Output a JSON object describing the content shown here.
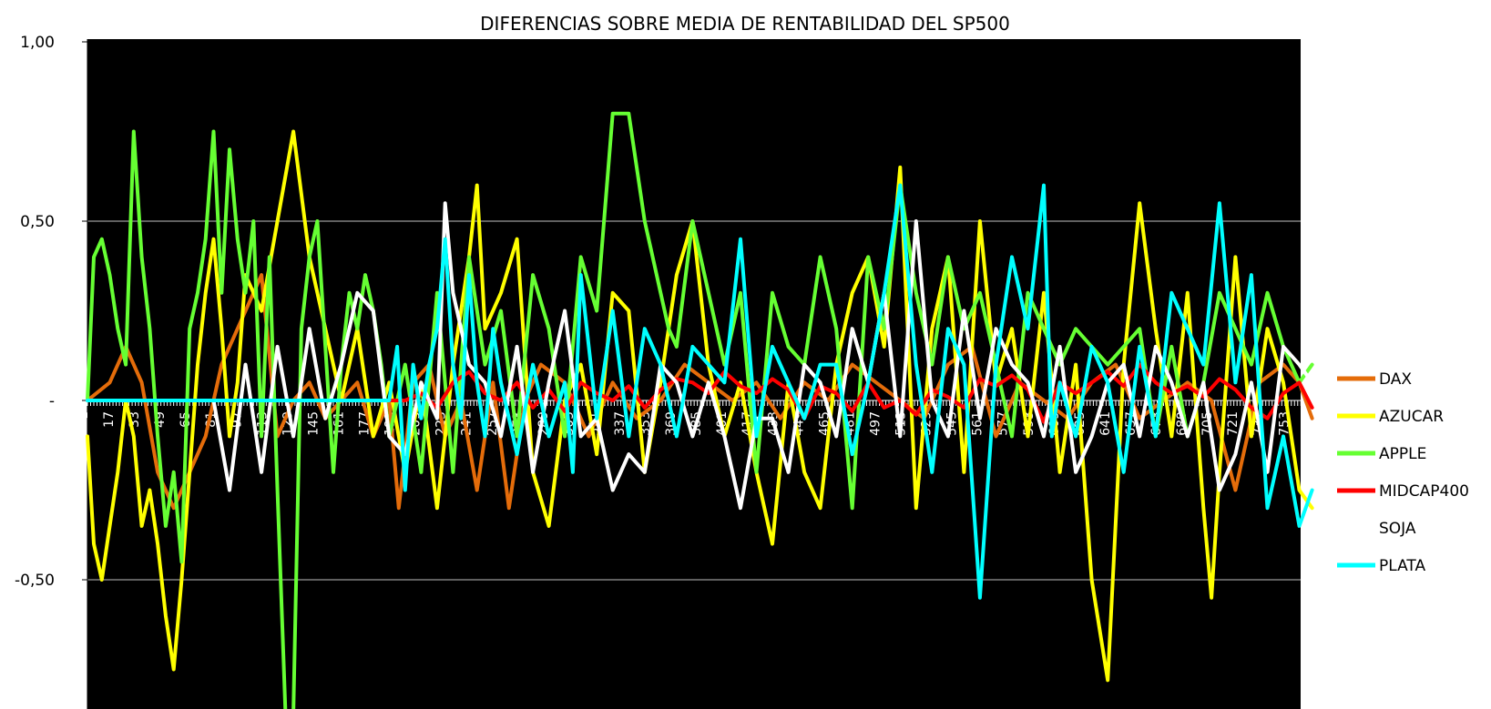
{
  "chart_data": {
    "type": "line",
    "title": "DIFERENCIAS SOBRE MEDIA DE RENTABILIDAD DEL SP500",
    "xlabel": "",
    "ylabel": "",
    "ylim": [
      -0.87,
      1.0
    ],
    "xlim": [
      1,
      768
    ],
    "yticks": [
      {
        "value": 1.0,
        "label": "1,00"
      },
      {
        "value": 0.5,
        "label": "0,50"
      },
      {
        "value": 0.0,
        "label": "-"
      },
      {
        "value": -0.5,
        "label": "-0,50"
      }
    ],
    "xticks": [
      1,
      17,
      33,
      49,
      65,
      81,
      97,
      113,
      129,
      145,
      161,
      177,
      193,
      209,
      225,
      241,
      257,
      273,
      289,
      305,
      321,
      337,
      353,
      369,
      385,
      401,
      417,
      433,
      449,
      465,
      481,
      497,
      513,
      529,
      545,
      561,
      577,
      593,
      609,
      625,
      641,
      657,
      673,
      689,
      705,
      721,
      737,
      753
    ],
    "plot_background": "#000000",
    "grid": true,
    "legend_position": "right",
    "series": [
      {
        "name": "DAX",
        "color": "#e46c0a",
        "x": [
          1,
          15,
          25,
          35,
          45,
          55,
          65,
          75,
          85,
          95,
          110,
          120,
          130,
          140,
          150,
          160,
          170,
          180,
          190,
          196,
          205,
          215,
          225,
          235,
          245,
          255,
          265,
          275,
          285,
          300,
          315,
          330,
          345,
          360,
          375,
          390,
          405,
          420,
          435,
          450,
          465,
          480,
          495,
          510,
          525,
          540,
          555,
          570,
          585,
          600,
          615,
          630,
          645,
          660,
          675,
          690,
          705,
          720,
          735,
          750,
          760,
          768
        ],
        "y": [
          0,
          0.05,
          0.15,
          0.05,
          -0.2,
          -0.3,
          -0.2,
          -0.1,
          0.1,
          0.2,
          0.35,
          -0.1,
          0,
          0.05,
          -0.05,
          0,
          0.05,
          -0.1,
          0,
          -0.3,
          0.05,
          0.1,
          -0.1,
          0,
          -0.25,
          0.05,
          -0.3,
          0,
          0.1,
          0.05,
          -0.1,
          0.05,
          -0.05,
          0,
          0.1,
          0.05,
          0,
          0.05,
          -0.05,
          0.05,
          0,
          0.1,
          0.05,
          0,
          -0.05,
          0.1,
          0.15,
          -0.1,
          0.05,
          0,
          -0.05,
          0.05,
          0.1,
          -0.05,
          0,
          0.05,
          0,
          -0.25,
          0.05,
          0.1,
          0.05,
          -0.05
        ]
      },
      {
        "name": "AZUCAR",
        "color": "#ffff00",
        "x": [
          1,
          5,
          10,
          15,
          20,
          25,
          30,
          35,
          40,
          45,
          50,
          55,
          60,
          65,
          70,
          75,
          80,
          85,
          90,
          95,
          100,
          110,
          120,
          130,
          140,
          150,
          160,
          170,
          180,
          190,
          200,
          210,
          220,
          230,
          240,
          245,
          250,
          260,
          270,
          280,
          290,
          300,
          310,
          320,
          330,
          340,
          350,
          360,
          370,
          380,
          390,
          400,
          410,
          420,
          430,
          440,
          450,
          460,
          470,
          480,
          490,
          500,
          510,
          520,
          530,
          540,
          550,
          560,
          570,
          580,
          590,
          600,
          610,
          620,
          630,
          640,
          650,
          660,
          670,
          680,
          690,
          700,
          705,
          710,
          715,
          720,
          730,
          740,
          750,
          760,
          768
        ],
        "y": [
          -0.1,
          -0.4,
          -0.5,
          -0.35,
          -0.2,
          0,
          -0.1,
          -0.35,
          -0.25,
          -0.4,
          -0.6,
          -0.75,
          -0.5,
          -0.2,
          0.1,
          0.3,
          0.45,
          0.2,
          -0.1,
          0.05,
          0.35,
          0.25,
          0.5,
          0.75,
          0.4,
          0.2,
          0,
          0.2,
          -0.1,
          0.05,
          -0.2,
          0.05,
          -0.3,
          0.1,
          0.4,
          0.6,
          0.2,
          0.3,
          0.45,
          -0.2,
          -0.35,
          0,
          0.1,
          -0.15,
          0.3,
          0.25,
          -0.2,
          0.05,
          0.35,
          0.5,
          0.1,
          -0.1,
          0.05,
          -0.2,
          -0.4,
          0.05,
          -0.2,
          -0.3,
          0.1,
          0.3,
          0.4,
          0.15,
          0.65,
          -0.3,
          0.2,
          0.4,
          -0.2,
          0.5,
          0.05,
          0.2,
          -0.1,
          0.3,
          -0.2,
          0.1,
          -0.5,
          -0.78,
          0.1,
          0.55,
          0.2,
          -0.1,
          0.3,
          -0.3,
          -0.55,
          -0.2,
          0.1,
          0.4,
          -0.1,
          0.2,
          0.05,
          -0.25,
          -0.3
        ]
      },
      {
        "name": "APPLE",
        "color": "#66ff33",
        "x": [
          1,
          5,
          10,
          15,
          20,
          25,
          30,
          35,
          40,
          45,
          50,
          55,
          60,
          65,
          70,
          75,
          80,
          85,
          90,
          95,
          100,
          105,
          110,
          115,
          120,
          125,
          130,
          135,
          140,
          145,
          150,
          155,
          160,
          165,
          170,
          175,
          180,
          185,
          190,
          200,
          210,
          220,
          230,
          240,
          250,
          260,
          270,
          280,
          290,
          300,
          310,
          320,
          330,
          340,
          350,
          355,
          360,
          365,
          370,
          380,
          390,
          400,
          410,
          420,
          430,
          440,
          450,
          460,
          470,
          480,
          490,
          500,
          510,
          520,
          530,
          540,
          550,
          560,
          570,
          580,
          590,
          600,
          610,
          620,
          630,
          640,
          650,
          660,
          670,
          680,
          690,
          700,
          710,
          720,
          730,
          740,
          750,
          760,
          768
        ],
        "y": [
          0,
          0.4,
          0.45,
          0.35,
          0.2,
          0.1,
          0.75,
          0.4,
          0.2,
          -0.1,
          -0.35,
          -0.2,
          -0.45,
          0.2,
          0.3,
          0.45,
          0.75,
          0.3,
          0.7,
          0.45,
          0.3,
          0.5,
          -0.1,
          0.4,
          -0.25,
          -0.87,
          -0.87,
          0.2,
          0.4,
          0.5,
          0.15,
          -0.2,
          0.1,
          0.3,
          0.2,
          0.35,
          0.25,
          0.1,
          -0.1,
          0.1,
          -0.2,
          0.3,
          -0.2,
          0.4,
          0.1,
          0.25,
          -0.1,
          0.35,
          0.2,
          -0.1,
          0.4,
          0.25,
          0.8,
          0.8,
          0.5,
          0.4,
          0.3,
          0.2,
          0.15,
          0.5,
          0.3,
          0.1,
          0.3,
          -0.2,
          0.3,
          0.15,
          0.1,
          0.4,
          0.2,
          -0.3,
          0.4,
          0.2,
          0.6,
          0.3,
          0.1,
          0.4,
          0.2,
          0.3,
          0.1,
          -0.1,
          0.3,
          0.2,
          0.1,
          0.2,
          0.15,
          0.1,
          0.15,
          0.2,
          -0.1,
          0.15,
          -0.1,
          0.05,
          0.3,
          0.2,
          0.1,
          0.3,
          0.15,
          0.05,
          0.1
        ]
      },
      {
        "name": "MIDCAP400",
        "color": "#ff0000",
        "x": [
          1,
          190,
          200,
          210,
          220,
          230,
          240,
          250,
          260,
          270,
          280,
          290,
          300,
          310,
          320,
          330,
          340,
          350,
          360,
          370,
          380,
          390,
          400,
          410,
          420,
          430,
          440,
          450,
          460,
          470,
          480,
          490,
          500,
          510,
          520,
          530,
          540,
          550,
          560,
          570,
          580,
          590,
          600,
          610,
          620,
          630,
          640,
          650,
          660,
          670,
          680,
          690,
          700,
          710,
          720,
          730,
          740,
          750,
          760,
          768
        ],
        "y": [
          0,
          0,
          0,
          0.02,
          -0.02,
          0.05,
          0.08,
          0.02,
          0,
          0.05,
          -0.02,
          0.03,
          -0.03,
          0.05,
          0.02,
          0,
          0.04,
          -0.02,
          0.03,
          0.06,
          0.05,
          0.02,
          0.08,
          0.04,
          0.02,
          0.06,
          0.03,
          -0.05,
          0.04,
          0.02,
          -0.03,
          0.05,
          -0.02,
          0,
          -0.04,
          0.03,
          0.01,
          -0.02,
          0.06,
          0.04,
          0.07,
          0.03,
          -0.06,
          0.05,
          0.02,
          0.05,
          0.08,
          0.04,
          0.1,
          0.05,
          0.02,
          0.04,
          0.01,
          0.06,
          0.03,
          -0.02,
          -0.05,
          0.02,
          0.05,
          -0.02
        ]
      },
      {
        "name": "SOJA",
        "color": "#ffffff",
        "x": [
          1,
          80,
          90,
          100,
          110,
          120,
          130,
          140,
          150,
          160,
          170,
          180,
          190,
          200,
          210,
          220,
          225,
          230,
          240,
          250,
          260,
          270,
          280,
          290,
          300,
          310,
          320,
          330,
          340,
          350,
          360,
          370,
          380,
          390,
          400,
          410,
          420,
          430,
          440,
          450,
          460,
          470,
          480,
          490,
          500,
          510,
          520,
          530,
          540,
          550,
          560,
          570,
          580,
          590,
          600,
          610,
          620,
          630,
          640,
          650,
          660,
          670,
          680,
          690,
          700,
          710,
          720,
          730,
          740,
          750,
          760,
          768
        ],
        "y": [
          0,
          0,
          -0.25,
          0.1,
          -0.2,
          0.15,
          -0.1,
          0.2,
          -0.05,
          0.1,
          0.3,
          0.25,
          -0.1,
          -0.15,
          0.05,
          -0.05,
          0.55,
          0.3,
          0.1,
          0.05,
          -0.1,
          0.15,
          -0.2,
          0.05,
          0.25,
          -0.1,
          -0.05,
          -0.25,
          -0.15,
          -0.2,
          0.1,
          0.05,
          -0.1,
          0.05,
          -0.1,
          -0.3,
          -0.05,
          -0.05,
          -0.2,
          0.1,
          0.05,
          -0.1,
          0.2,
          0.05,
          0.3,
          -0.1,
          0.5,
          0,
          -0.1,
          0.25,
          -0.05,
          0.2,
          0.1,
          0.05,
          -0.1,
          0.15,
          -0.2,
          -0.1,
          0.05,
          0.1,
          -0.1,
          0.15,
          0.05,
          -0.1,
          0.05,
          -0.25,
          -0.15,
          0.05,
          -0.2,
          0.15,
          0.1,
          0.05
        ]
      },
      {
        "name": "PLATA",
        "color": "#00ffff",
        "x": [
          1,
          190,
          195,
          200,
          205,
          210,
          215,
          220,
          225,
          230,
          235,
          240,
          245,
          250,
          255,
          260,
          270,
          280,
          290,
          300,
          305,
          310,
          320,
          330,
          340,
          350,
          360,
          370,
          380,
          390,
          400,
          410,
          420,
          430,
          440,
          450,
          460,
          470,
          480,
          490,
          500,
          510,
          520,
          530,
          540,
          550,
          560,
          570,
          580,
          590,
          600,
          605,
          610,
          620,
          630,
          640,
          650,
          660,
          670,
          680,
          690,
          700,
          710,
          720,
          730,
          740,
          750,
          760,
          768
        ],
        "y": [
          0,
          0,
          0.15,
          -0.25,
          0.1,
          -0.05,
          0.1,
          0.2,
          0.45,
          0.1,
          -0.05,
          0.35,
          0.05,
          -0.1,
          0.2,
          0.05,
          -0.15,
          0.1,
          -0.1,
          0.05,
          -0.2,
          0.35,
          -0.05,
          0.25,
          -0.1,
          0.2,
          0.1,
          -0.1,
          0.15,
          0.1,
          0.05,
          0.45,
          -0.1,
          0.15,
          0.05,
          -0.05,
          0.1,
          0.1,
          -0.15,
          0.05,
          0.3,
          0.6,
          0.1,
          -0.2,
          0.2,
          0.1,
          -0.55,
          0.1,
          0.4,
          0.2,
          0.6,
          -0.1,
          0.05,
          -0.1,
          0.15,
          0.05,
          -0.2,
          0.15,
          -0.1,
          0.3,
          0.2,
          0.1,
          0.55,
          0.05,
          0.35,
          -0.3,
          -0.1,
          -0.35,
          -0.25
        ]
      }
    ]
  }
}
